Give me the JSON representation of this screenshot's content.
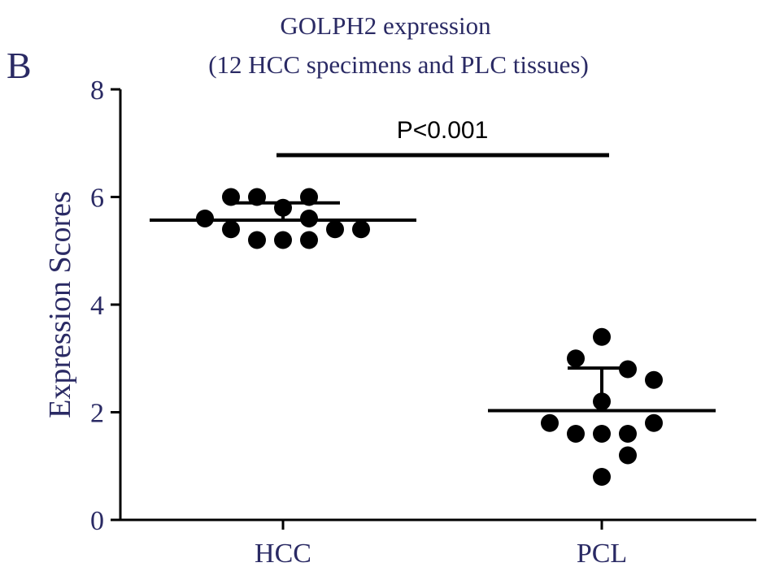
{
  "panel_label": "B",
  "chart_data": {
    "type": "scatter",
    "title": "GOLPH2 expression",
    "subtitle": "(12 HCC specimens and PLC tissues)",
    "xlabel": "",
    "ylabel": "Expression Scores",
    "categories": [
      "HCC",
      "PCL"
    ],
    "ylim": [
      0,
      8
    ],
    "yticks": [
      0,
      2,
      4,
      6,
      8
    ],
    "grid": false,
    "groups": [
      {
        "category": "HCC",
        "values": [
          6.0,
          6.0,
          6.0,
          5.8,
          5.6,
          5.6,
          5.4,
          5.4,
          5.4,
          5.2,
          5.2,
          5.2
        ],
        "mean": 5.57,
        "sd_upper": 5.89
      },
      {
        "category": "PCL",
        "values": [
          3.4,
          3.0,
          2.8,
          2.6,
          2.2,
          1.8,
          1.8,
          1.6,
          1.6,
          1.6,
          1.2,
          0.8
        ],
        "mean": 2.03,
        "sd_upper": 2.82
      }
    ],
    "annotation": {
      "text": "P<0.001"
    },
    "colors": {
      "points": "#000000",
      "axis": "#000000",
      "text": "#2a2a64"
    }
  }
}
